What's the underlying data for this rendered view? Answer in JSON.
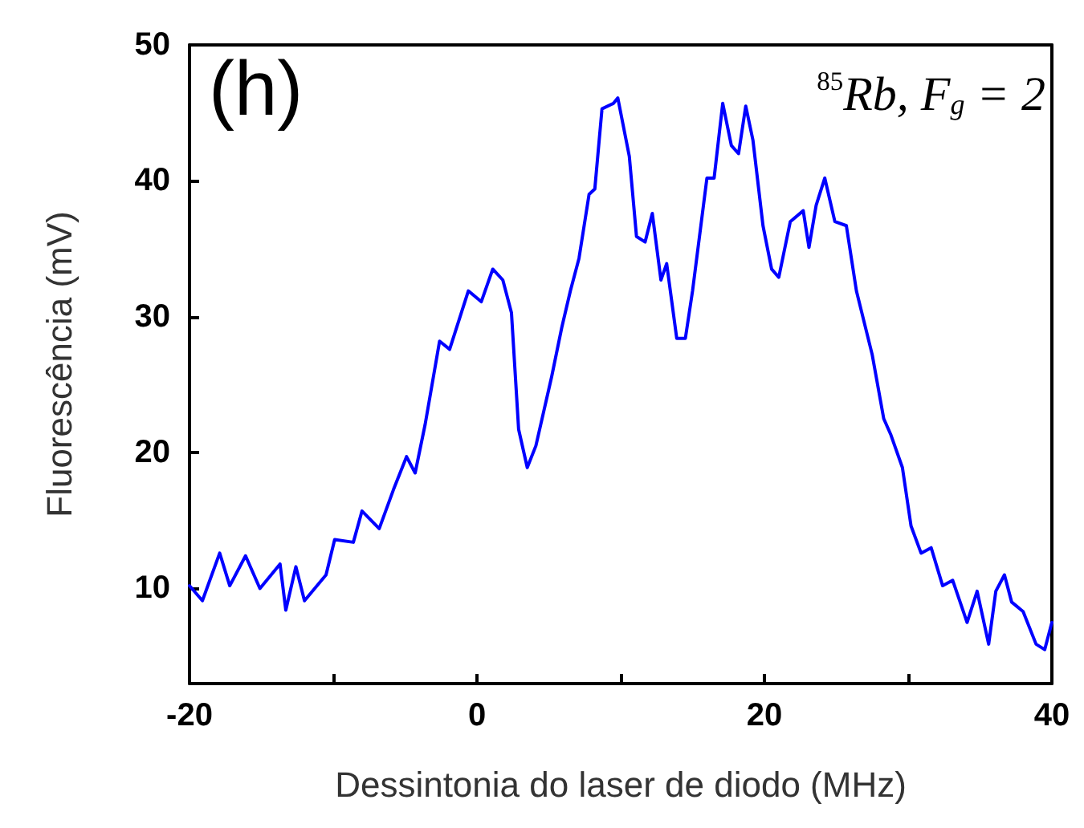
{
  "chart_data": {
    "type": "line",
    "xlabel": "Dessintonia do laser de diodo (MHz)",
    "ylabel": "Fluorescência (mV)",
    "annotations": [
      "(h)",
      "$^{85}$Rb, F$_{g}$ = 2"
    ],
    "xlim": [
      -20,
      40
    ],
    "xticks": [
      -20,
      {
        "value": -10,
        "label": null
      },
      0,
      {
        "value": 10,
        "label": null
      },
      20,
      {
        "value": 30,
        "label": null
      },
      40
    ],
    "ylim": [
      3,
      50
    ],
    "yticks": [
      10,
      20,
      30,
      40,
      50
    ],
    "grid": false,
    "marker": "none",
    "line_style": "solid",
    "series": [
      {
        "color": "#0000ff",
        "x": [
          -20,
          -19.1,
          -17.9,
          -17.2,
          -16.1,
          -15.1,
          -13.7,
          -13.3,
          -12.6,
          -12.0,
          -10.5,
          -9.9,
          -8.6,
          -8.0,
          -6.8,
          -5.8,
          -4.9,
          -4.3,
          -3.6,
          -2.6,
          -1.9,
          -0.6,
          0.3,
          1.1,
          1.8,
          2.4,
          2.9,
          3.5,
          4.1,
          5.2,
          5.9,
          6.5,
          7.1,
          7.8,
          8.2,
          8.7,
          9.5,
          9.8,
          10.6,
          11.1,
          11.7,
          12.2,
          12.8,
          13.2,
          13.9,
          14.5,
          15.0,
          16.0,
          16.5,
          17.1,
          17.7,
          18.2,
          18.7,
          19.2,
          19.9,
          20.5,
          21.0,
          21.8,
          22.7,
          23.1,
          23.6,
          24.2,
          24.9,
          25.7,
          26.4,
          27.5,
          28.3,
          28.8,
          29.6,
          30.2,
          30.9,
          31.6,
          32.4,
          33.1,
          34.1,
          34.8,
          35.6,
          36.1,
          36.7,
          37.2,
          38.0,
          38.9,
          39.5,
          40.0
        ],
        "values": [
          10.2,
          9.1,
          12.6,
          10.2,
          12.4,
          10.0,
          11.8,
          8.4,
          11.6,
          9.1,
          11.0,
          13.6,
          13.4,
          15.7,
          14.4,
          17.3,
          19.7,
          18.5,
          22.1,
          28.2,
          27.6,
          31.9,
          31.1,
          33.5,
          32.7,
          30.3,
          21.7,
          18.9,
          20.5,
          25.6,
          29.2,
          31.9,
          34.3,
          39.0,
          39.4,
          45.3,
          45.7,
          46.1,
          41.8,
          35.9,
          35.5,
          37.6,
          32.7,
          33.9,
          28.4,
          28.4,
          31.9,
          40.2,
          40.2,
          45.7,
          42.6,
          42.0,
          45.5,
          43.0,
          36.7,
          33.5,
          32.9,
          37.0,
          37.8,
          35.1,
          38.2,
          40.2,
          37.0,
          36.7,
          31.9,
          27.2,
          22.5,
          21.3,
          18.9,
          14.6,
          12.6,
          13.0,
          10.2,
          10.6,
          7.5,
          9.8,
          5.9,
          9.8,
          11.0,
          9.0,
          8.3,
          5.9,
          5.5,
          7.5
        ]
      }
    ]
  }
}
